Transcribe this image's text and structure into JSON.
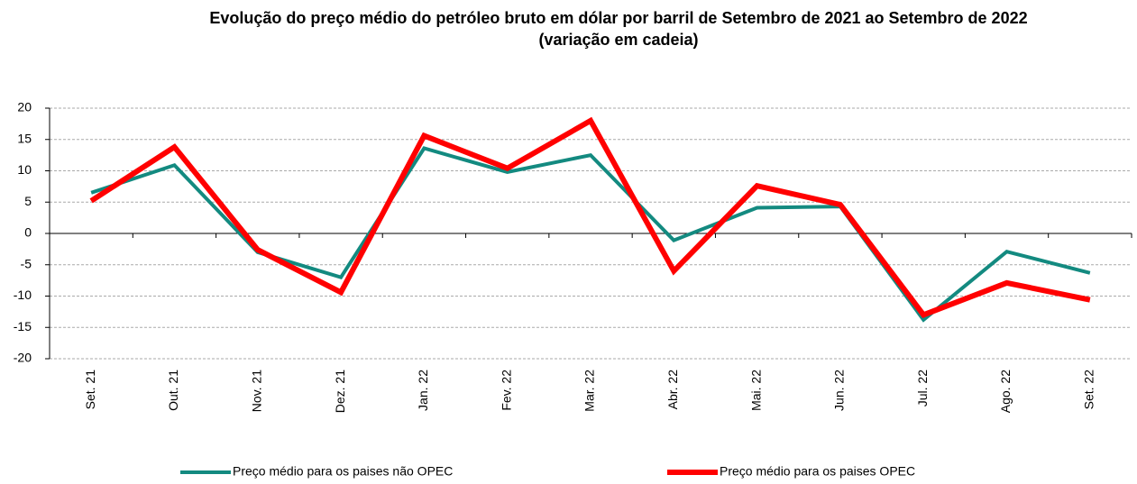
{
  "chart_data": {
    "type": "line",
    "title": "Evolução do preço médio do petróleo bruto em dólar por barril de Setembro de 2021 ao Setembro de 2022",
    "subtitle": "(variação em cadeia)",
    "categories": [
      "Set. 21",
      "Out. 21",
      "Nov. 21",
      "Dez. 21",
      "Jan. 22",
      "Fev. 22",
      "Mar. 22",
      "Abr. 22",
      "Mai. 22",
      "Jun. 22",
      "Jul. 22",
      "Ago. 22",
      "Set. 22"
    ],
    "series": [
      {
        "name": "Preço médio para os paises  não OPEC",
        "color": "#138a80",
        "values": [
          6.5,
          10.9,
          -3.0,
          -7.0,
          13.6,
          9.8,
          12.5,
          -1.1,
          4.1,
          4.3,
          -13.8,
          -2.9,
          -6.3
        ]
      },
      {
        "name": "Preço médio para os paises   OPEC",
        "color": "#ff0000",
        "values": [
          5.2,
          13.8,
          -2.6,
          -9.4,
          15.6,
          10.4,
          18.0,
          -6.0,
          7.6,
          4.6,
          -13.0,
          -7.9,
          -10.6
        ]
      }
    ],
    "ylim": [
      -20,
      20
    ],
    "yticks": [
      -20,
      -15,
      -10,
      -5,
      0,
      5,
      10,
      15,
      20
    ],
    "grid": true,
    "legend": "bottom"
  }
}
